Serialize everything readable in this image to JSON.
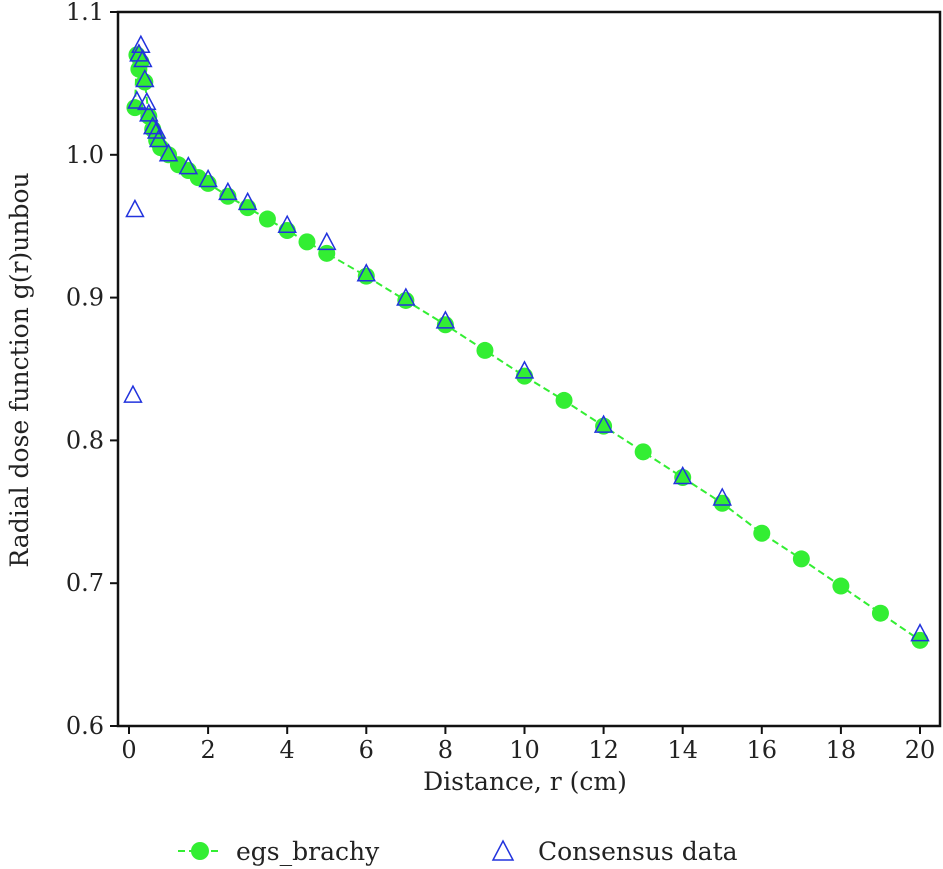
{
  "chart_data": {
    "type": "scatter",
    "xlabel": "Distance, r (cm)",
    "ylabel": "Radial dose function g(r)unbou",
    "xlim": [
      -0.3,
      20.5
    ],
    "ylim": [
      0.6,
      1.1
    ],
    "xticks": [
      0,
      2,
      4,
      6,
      8,
      10,
      12,
      14,
      16,
      18,
      20
    ],
    "yticks": [
      0.6,
      0.7,
      0.8,
      0.9,
      1.0,
      1.1
    ],
    "ytick_labels": [
      "0.6",
      "0.7",
      "0.8",
      "0.9",
      "1.0",
      "1.1"
    ],
    "legend": "bottom",
    "series": [
      {
        "name": "egs_brachy",
        "marker": "filled-circle",
        "line": "dashed",
        "color": "#33ee33",
        "x": [
          0.15,
          0.2,
          0.25,
          0.3,
          0.4,
          0.5,
          0.6,
          0.7,
          0.8,
          1,
          1.25,
          1.5,
          1.75,
          2,
          2.5,
          3,
          3.5,
          4,
          4.5,
          5,
          6,
          7,
          8,
          9,
          10,
          11,
          12,
          13,
          14,
          15,
          16,
          17,
          18,
          19,
          20
        ],
        "y": [
          1.033,
          1.07,
          1.06,
          1.065,
          1.051,
          1.027,
          1.018,
          1.01,
          1.005,
          1.0,
          0.993,
          0.989,
          0.984,
          0.98,
          0.971,
          0.963,
          0.955,
          0.947,
          0.939,
          0.931,
          0.915,
          0.898,
          0.881,
          0.863,
          0.845,
          0.828,
          0.81,
          0.792,
          0.774,
          0.756,
          0.735,
          0.717,
          0.698,
          0.679,
          0.66
        ]
      },
      {
        "name": "Consensus data",
        "marker": "open-triangle",
        "color": "#2233dd",
        "x": [
          0.1,
          0.15,
          0.2,
          0.25,
          0.3,
          0.35,
          0.4,
          0.45,
          0.5,
          0.6,
          0.7,
          0.75,
          1,
          1.5,
          2,
          2.5,
          3,
          4,
          5,
          6,
          7,
          8,
          10,
          12,
          14,
          15,
          20
        ],
        "y": [
          0.831,
          0.961,
          1.037,
          1.07,
          1.076,
          1.066,
          1.052,
          1.036,
          1.028,
          1.019,
          1.016,
          1.01,
          1.0,
          0.991,
          0.982,
          0.973,
          0.966,
          0.95,
          0.938,
          0.916,
          0.899,
          0.883,
          0.848,
          0.81,
          0.774,
          0.759,
          0.664
        ]
      }
    ]
  }
}
